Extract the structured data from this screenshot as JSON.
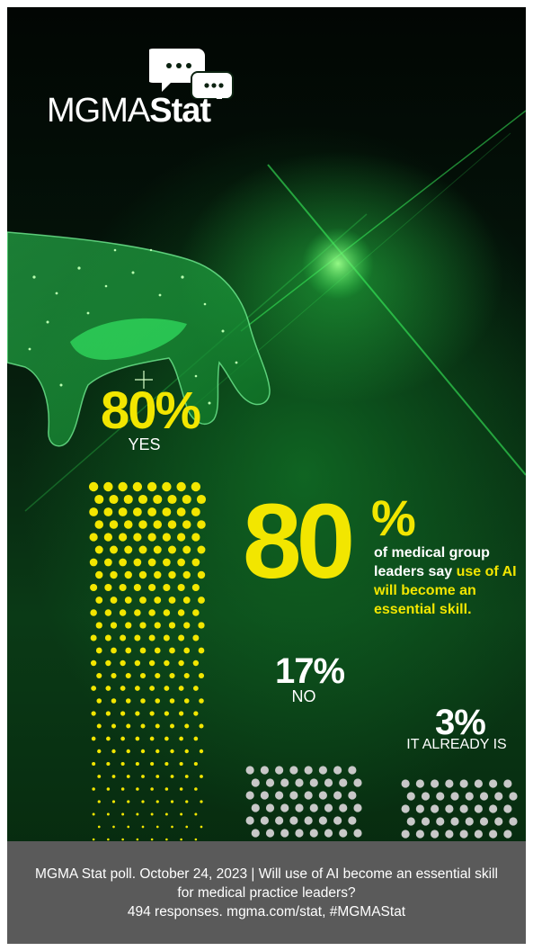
{
  "logo": {
    "text_light": "MGMA",
    "text_bold": "Stat"
  },
  "chart_data": {
    "type": "bar",
    "categories": [
      "YES",
      "NO",
      "IT ALREADY IS"
    ],
    "values": [
      80,
      17,
      3
    ],
    "value_labels": [
      "80%",
      "17%",
      "3%"
    ],
    "ylim": [
      0,
      100
    ],
    "colors": [
      "#f2e600",
      "#c8c8c8",
      "#c8c8c8"
    ],
    "grid": false
  },
  "headline": {
    "number": "80",
    "percent_sign": "%",
    "text_plain": "of medical group leaders say ",
    "text_highlight": "use of AI will become an essential skill."
  },
  "footer": {
    "line1": "MGMA Stat poll. October 24, 2023  |  Will use of AI become an essential skill for medical practice leaders?",
    "line2": "494 responses. mgma.com/stat, #MGMAStat"
  },
  "colors": {
    "accent": "#f2e600",
    "footer_bg": "#5a5a5a"
  }
}
